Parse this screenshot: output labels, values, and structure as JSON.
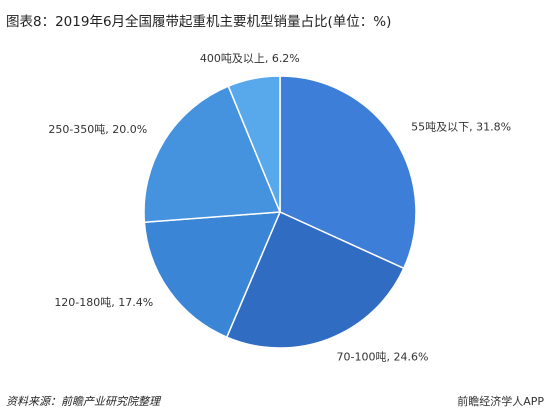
{
  "chart_data": {
    "type": "pie",
    "title": "图表8：2019年6月全国履带起重机主要机型销量占比(单位：%)",
    "values": [
      31.8,
      24.6,
      17.4,
      20.0,
      6.2
    ],
    "value_labels": [
      "55吨及以下, 31.8%",
      "70-100吨, 24.6%",
      "120-180吨, 17.4%",
      "250-350吨, 20.0%",
      "400吨及以上, 6.2%"
    ],
    "colors": [
      "#3d7fd8",
      "#2f6cc2",
      "#3a85d6",
      "#4592de",
      "#58a8ec"
    ],
    "source": "资料来源：前瞻产业研究院整理",
    "watermark": "前瞻经济学人APP"
  }
}
